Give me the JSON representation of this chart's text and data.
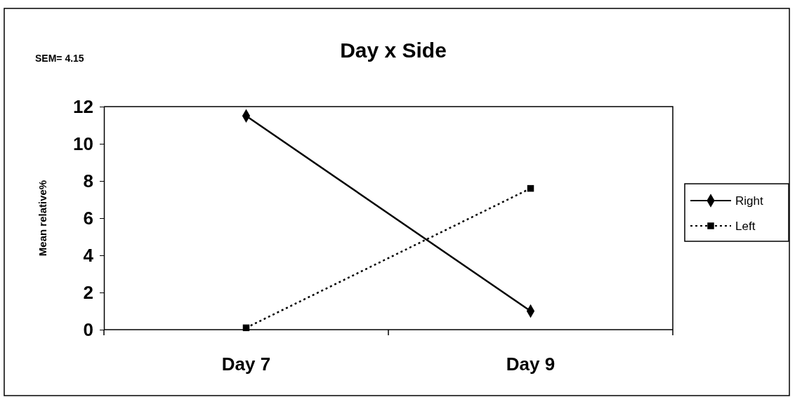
{
  "chart_data": {
    "type": "line",
    "title": "Day x Side",
    "ylabel": "Mean relative%",
    "annotations": [
      "SEM= 4.15"
    ],
    "categories": [
      "Day 7",
      "Day 9"
    ],
    "series": [
      {
        "name": "Right",
        "color": "#000000",
        "values": [
          11.5,
          1.0
        ],
        "marker": "diamond",
        "line_style": "solid"
      },
      {
        "name": "Left",
        "color": "#000000",
        "values": [
          0.1,
          7.6
        ],
        "marker": "square",
        "line_style": "dotted"
      }
    ],
    "ylim": [
      0,
      12
    ],
    "yticks": [
      0,
      2,
      4,
      6,
      8,
      10,
      12
    ],
    "grid": false,
    "legend": "right"
  }
}
